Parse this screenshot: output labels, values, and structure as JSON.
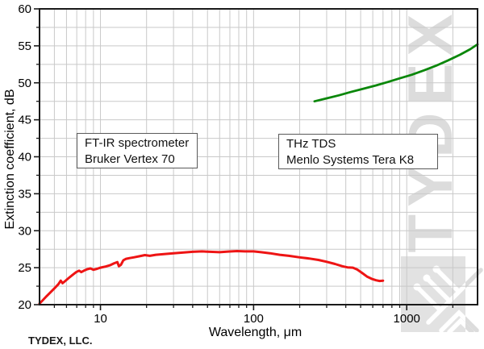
{
  "watermark": {
    "text": "TYDEX"
  },
  "footer": {
    "company": "TYDEX, LLC."
  },
  "annotation_boxes": {
    "ftir": {
      "line1": "FT-IR spectrometer",
      "line2": "Bruker Vertex 70"
    },
    "thz": {
      "line1": "THz TDS",
      "line2": "Menlo Systems Tera K8"
    }
  },
  "chart_data": {
    "type": "line",
    "title": "",
    "xlabel": "Wavelength, μm",
    "ylabel": "Extinction coefficient, dB",
    "x_scale": "log",
    "xlim": [
      4,
      2900
    ],
    "ylim": [
      20,
      60
    ],
    "x_ticks": [
      10,
      100,
      1000
    ],
    "x_tick_labels": [
      "10",
      "100",
      "1000"
    ],
    "y_ticks": [
      20,
      25,
      30,
      35,
      40,
      45,
      50,
      55,
      60
    ],
    "y_tick_labels": [
      "20",
      "25",
      "30",
      "35",
      "40",
      "45",
      "50",
      "55",
      "60"
    ],
    "y_minor_step": 2.5,
    "grid": "minor-and-major, light gray, full frame box, ticks outside bottom-left",
    "legend_position": "none (two labeled text boxes inside plot)",
    "colors": {
      "grid": "#c9c9c9",
      "frame": "#1a1a1a",
      "tick": "#1a1a1a",
      "text": "#000000",
      "watermark": "#dcdcdc",
      "logo_panel": "#e2e2e2"
    },
    "series": [
      {
        "name": "FT-IR spectrometer Bruker Vertex 70",
        "color": "#ee1414",
        "width": 3,
        "points": [
          [
            4,
            20.15
          ],
          [
            4.2,
            20.6
          ],
          [
            4.45,
            21.15
          ],
          [
            4.7,
            21.65
          ],
          [
            5.0,
            22.2
          ],
          [
            5.3,
            22.75
          ],
          [
            5.5,
            23.25
          ],
          [
            5.65,
            22.9
          ],
          [
            5.85,
            23.15
          ],
          [
            6.2,
            23.6
          ],
          [
            6.6,
            24.05
          ],
          [
            6.95,
            24.4
          ],
          [
            7.25,
            24.6
          ],
          [
            7.5,
            24.4
          ],
          [
            7.8,
            24.6
          ],
          [
            8.2,
            24.8
          ],
          [
            8.6,
            24.9
          ],
          [
            9.0,
            24.72
          ],
          [
            9.5,
            24.85
          ],
          [
            10,
            25.0
          ],
          [
            10.8,
            25.15
          ],
          [
            11.6,
            25.35
          ],
          [
            12.3,
            25.6
          ],
          [
            12.9,
            25.75
          ],
          [
            13.2,
            25.2
          ],
          [
            13.6,
            25.4
          ],
          [
            14.1,
            26.0
          ],
          [
            14.7,
            26.2
          ],
          [
            15.5,
            26.3
          ],
          [
            16.5,
            26.4
          ],
          [
            18,
            26.55
          ],
          [
            19.5,
            26.7
          ],
          [
            21,
            26.6
          ],
          [
            23,
            26.75
          ],
          [
            26,
            26.85
          ],
          [
            30,
            26.95
          ],
          [
            35,
            27.05
          ],
          [
            40,
            27.15
          ],
          [
            46,
            27.2
          ],
          [
            52,
            27.15
          ],
          [
            60,
            27.1
          ],
          [
            68,
            27.18
          ],
          [
            78,
            27.25
          ],
          [
            88,
            27.2
          ],
          [
            100,
            27.2
          ],
          [
            112,
            27.1
          ],
          [
            128,
            26.95
          ],
          [
            148,
            26.75
          ],
          [
            170,
            26.6
          ],
          [
            200,
            26.4
          ],
          [
            230,
            26.25
          ],
          [
            265,
            26.05
          ],
          [
            300,
            25.8
          ],
          [
            340,
            25.5
          ],
          [
            380,
            25.2
          ],
          [
            410,
            25.05
          ],
          [
            445,
            25.0
          ],
          [
            475,
            24.75
          ],
          [
            510,
            24.3
          ],
          [
            550,
            23.8
          ],
          [
            590,
            23.5
          ],
          [
            630,
            23.3
          ],
          [
            665,
            23.2
          ],
          [
            700,
            23.25
          ]
        ]
      },
      {
        "name": "THz TDS Menlo Systems Tera K8",
        "color": "#0a870a",
        "width": 2.8,
        "points": [
          [
            250,
            47.5
          ],
          [
            300,
            47.9
          ],
          [
            360,
            48.3
          ],
          [
            430,
            48.75
          ],
          [
            520,
            49.2
          ],
          [
            630,
            49.65
          ],
          [
            750,
            50.1
          ],
          [
            900,
            50.6
          ],
          [
            1080,
            51.1
          ],
          [
            1300,
            51.7
          ],
          [
            1550,
            52.3
          ],
          [
            1850,
            53.0
          ],
          [
            2230,
            53.8
          ],
          [
            2600,
            54.55
          ],
          [
            2900,
            55.2
          ]
        ]
      }
    ]
  }
}
